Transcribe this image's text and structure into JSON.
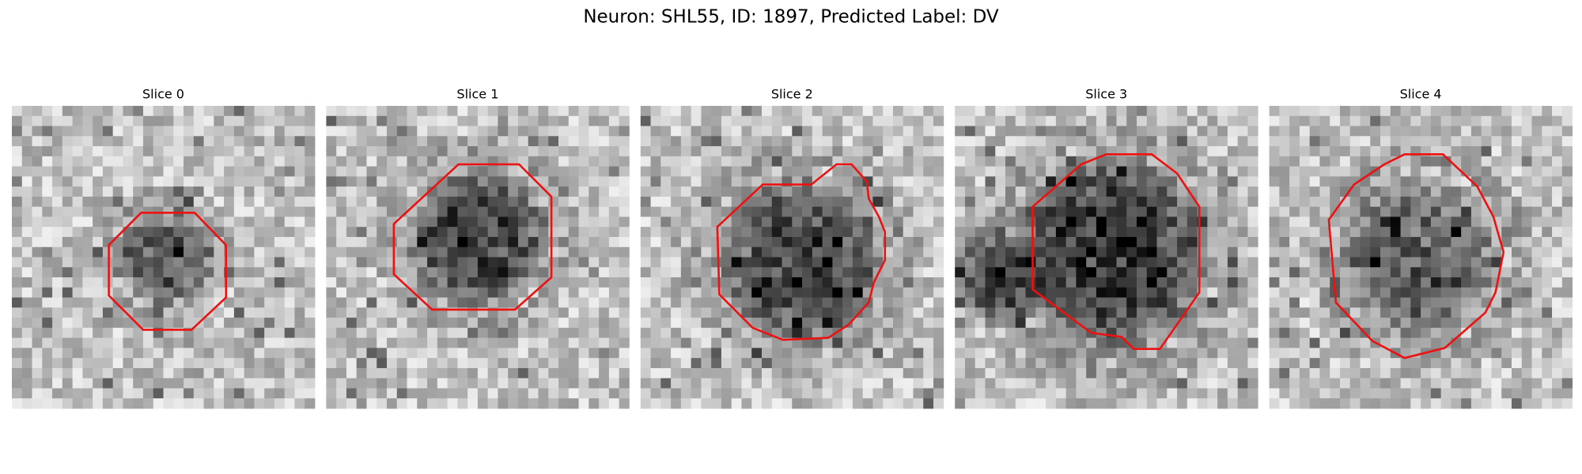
{
  "header": {
    "title": "Neuron: SHL55, ID: 1897, Predicted Label: DV"
  },
  "panels": [
    {
      "title": "Slice 0"
    },
    {
      "title": "Slice 1"
    },
    {
      "title": "Slice 2"
    },
    {
      "title": "Slice 3"
    },
    {
      "title": "Slice 4"
    }
  ]
}
